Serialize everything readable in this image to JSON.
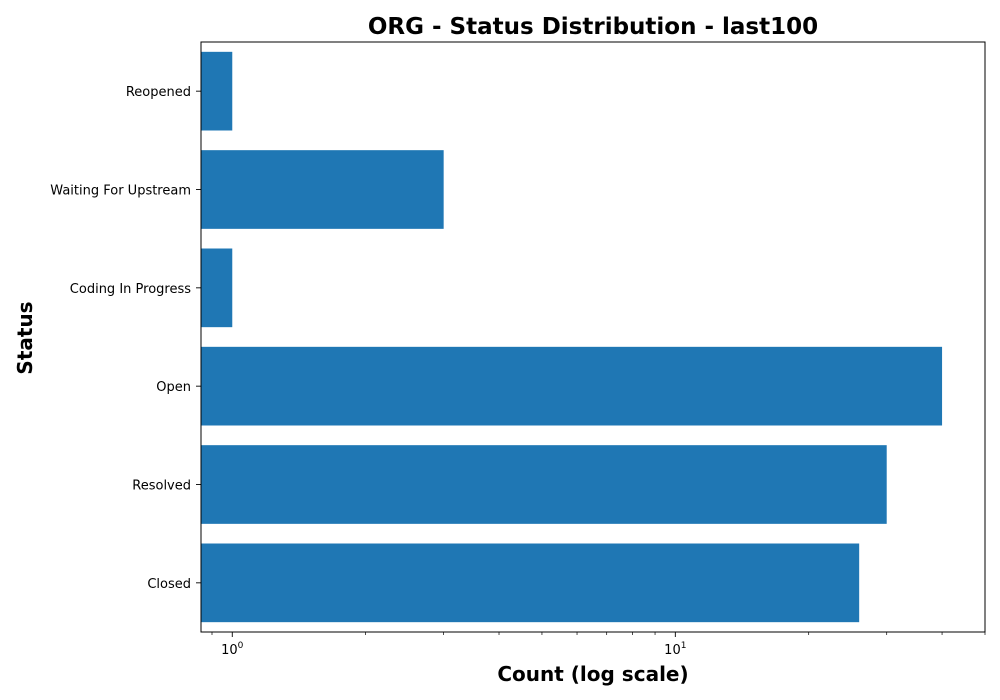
{
  "chart_data": {
    "type": "bar",
    "orientation": "horizontal",
    "title": "ORG - Status Distribution - last100",
    "xlabel": "Count (log scale)",
    "ylabel": "Status",
    "x_scale": "log",
    "xlim": [
      0.85,
      50
    ],
    "x_major_ticks": [
      {
        "value": 1,
        "base": "10",
        "exp": "0"
      },
      {
        "value": 10,
        "base": "10",
        "exp": "1"
      }
    ],
    "categories": [
      "Closed",
      "Resolved",
      "Open",
      "Coding In Progress",
      "Waiting For Upstream",
      "Reopened"
    ],
    "values": [
      26,
      30,
      40,
      1,
      3,
      1
    ],
    "bar_color": "#1f77b4",
    "grid": false,
    "legend": "none"
  }
}
